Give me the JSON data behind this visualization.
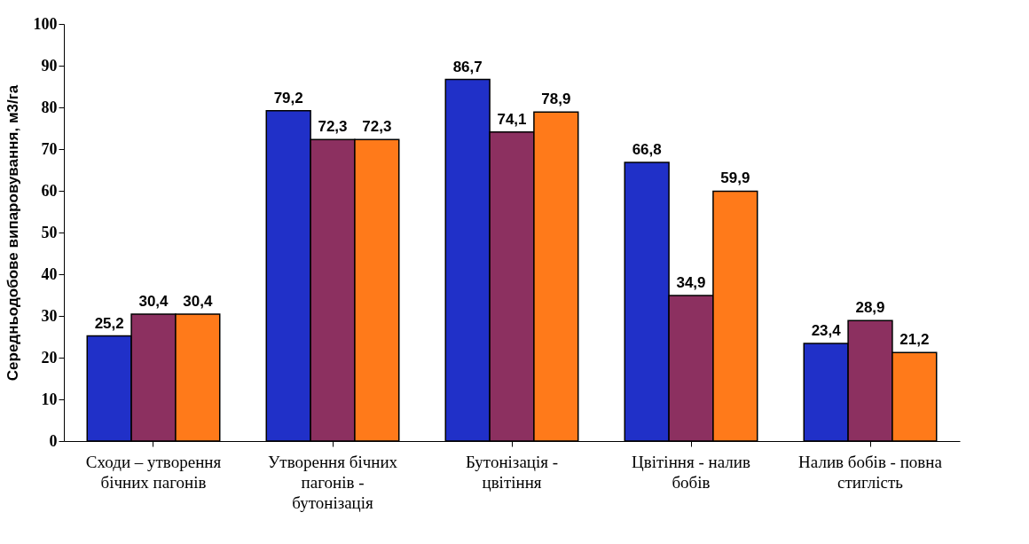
{
  "chart_data": {
    "type": "bar",
    "ylabel": "Середньодобове випаровування, м3/га",
    "categories": [
      "Сходи – утворення бічних пагонів",
      "Утворення бічних пагонів - бутонізація",
      "Бутонізація - цвітіння",
      "Цвітіння - налив бобів",
      "Налив бобів - повна стиглість"
    ],
    "series": [
      {
        "color": "#2030c8",
        "values": [
          25.2,
          79.2,
          86.7,
          66.8,
          23.4
        ],
        "value_labels": [
          "25,2",
          "79,2",
          "86,7",
          "66,8",
          "23,4"
        ]
      },
      {
        "color": "#8c3060",
        "values": [
          30.4,
          72.3,
          74.1,
          34.9,
          28.9
        ],
        "value_labels": [
          "30,4",
          "72,3",
          "74,1",
          "34,9",
          "28,9"
        ]
      },
      {
        "color": "#ff7a1a",
        "values": [
          30.4,
          72.3,
          78.9,
          59.9,
          21.2
        ],
        "value_labels": [
          "30,4",
          "72,3",
          "78,9",
          "59,9",
          "21,2"
        ]
      }
    ],
    "ylim": [
      0,
      100
    ],
    "yticks": [
      0,
      10,
      20,
      30,
      40,
      50,
      60,
      70,
      80,
      90,
      100
    ],
    "grid": false,
    "legend": false
  }
}
